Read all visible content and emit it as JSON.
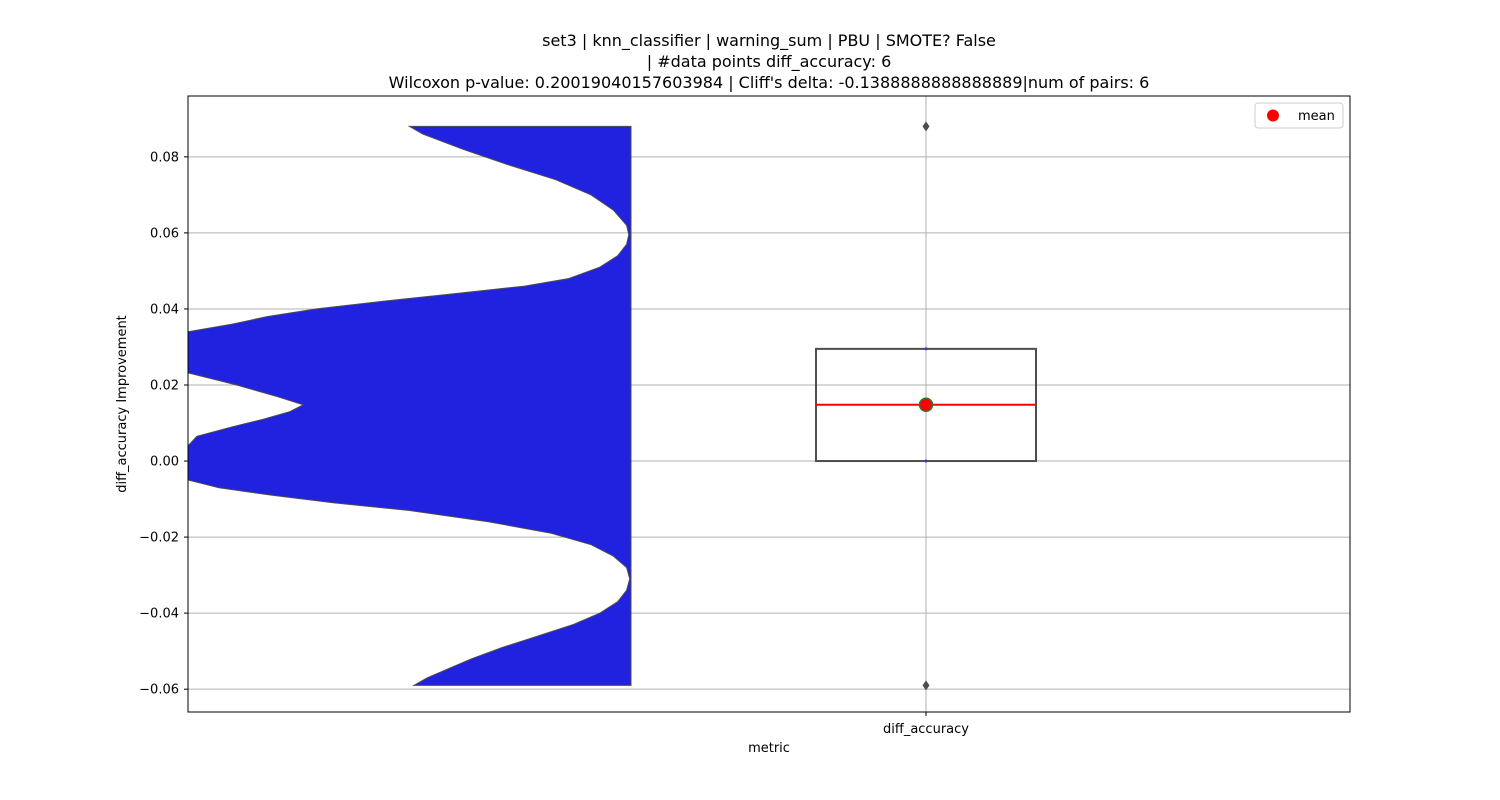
{
  "chart_data": {
    "type": "violin+box",
    "title_lines": [
      "set3 | knn_classifier | warning_sum | PBU | SMOTE? False",
      "| #data points diff_accuracy: 6",
      "Wilcoxon p-value: 0.20019040157603984 | Cliff's delta: -0.1388888888888889|num of pairs: 6"
    ],
    "xlabel": "metric",
    "ylabel": "diff_accuracy Improvement",
    "categories": [
      "diff_accuracy"
    ],
    "ylim": [
      -0.066,
      0.096
    ],
    "yticks": [
      0.08,
      0.06,
      0.04,
      0.02,
      0.0,
      -0.02,
      -0.04,
      -0.06
    ],
    "ytick_labels": [
      "0.08",
      "0.06",
      "0.04",
      "0.02",
      "0.00",
      "−0.02",
      "−0.04",
      "−0.06"
    ],
    "grid": true,
    "legend": {
      "position": "top-right",
      "entries": [
        "mean"
      ]
    },
    "box": {
      "category": "diff_accuracy",
      "q1": 0.0,
      "median": 0.0148,
      "q3": 0.0295,
      "whisker_low": 0.0,
      "whisker_high": 0.0295,
      "outliers": [
        0.088,
        -0.059
      ],
      "mean": 0.0148
    },
    "violin": {
      "y_min": -0.059,
      "y_max": 0.088,
      "density_profile": [
        [
          0.088,
          0.5
        ],
        [
          0.086,
          0.47
        ],
        [
          0.082,
          0.38
        ],
        [
          0.078,
          0.28
        ],
        [
          0.074,
          0.17
        ],
        [
          0.07,
          0.09
        ],
        [
          0.066,
          0.04
        ],
        [
          0.062,
          0.01
        ],
        [
          0.0595,
          0.005
        ],
        [
          0.057,
          0.01
        ],
        [
          0.054,
          0.03
        ],
        [
          0.051,
          0.07
        ],
        [
          0.048,
          0.14
        ],
        [
          0.046,
          0.24
        ],
        [
          0.044,
          0.4
        ],
        [
          0.042,
          0.56
        ],
        [
          0.04,
          0.71
        ],
        [
          0.038,
          0.82
        ],
        [
          0.036,
          0.9
        ],
        [
          0.034,
          1.0
        ],
        [
          0.0245,
          1.0
        ],
        [
          0.0232,
          1.0
        ],
        [
          0.02,
          0.89
        ],
        [
          0.017,
          0.8
        ],
        [
          0.0148,
          0.74
        ],
        [
          0.013,
          0.77
        ],
        [
          0.011,
          0.83
        ],
        [
          0.009,
          0.9
        ],
        [
          0.0065,
          0.98
        ],
        [
          0.004,
          1.0
        ],
        [
          -0.005,
          1.0
        ],
        [
          -0.007,
          0.93
        ],
        [
          -0.009,
          0.81
        ],
        [
          -0.011,
          0.67
        ],
        [
          -0.013,
          0.5
        ],
        [
          -0.016,
          0.32
        ],
        [
          -0.019,
          0.18
        ],
        [
          -0.022,
          0.09
        ],
        [
          -0.025,
          0.04
        ],
        [
          -0.028,
          0.01
        ],
        [
          -0.031,
          0.003
        ],
        [
          -0.034,
          0.01
        ],
        [
          -0.037,
          0.03
        ],
        [
          -0.04,
          0.07
        ],
        [
          -0.043,
          0.13
        ],
        [
          -0.046,
          0.21
        ],
        [
          -0.049,
          0.29
        ],
        [
          -0.052,
          0.36
        ],
        [
          -0.055,
          0.42
        ],
        [
          -0.057,
          0.46
        ],
        [
          -0.059,
          0.49
        ]
      ]
    },
    "colors": {
      "violin_fill": "#2121e0",
      "violin_edge": "#4d4d4d",
      "box_edge": "#4d4d4d",
      "median_line": "#ff0000",
      "mean_marker": "#ff0000",
      "mean_marker_edge": "#2a7a2a",
      "grid": "#b0b0b0",
      "outlier": "#4d4d4d"
    }
  }
}
